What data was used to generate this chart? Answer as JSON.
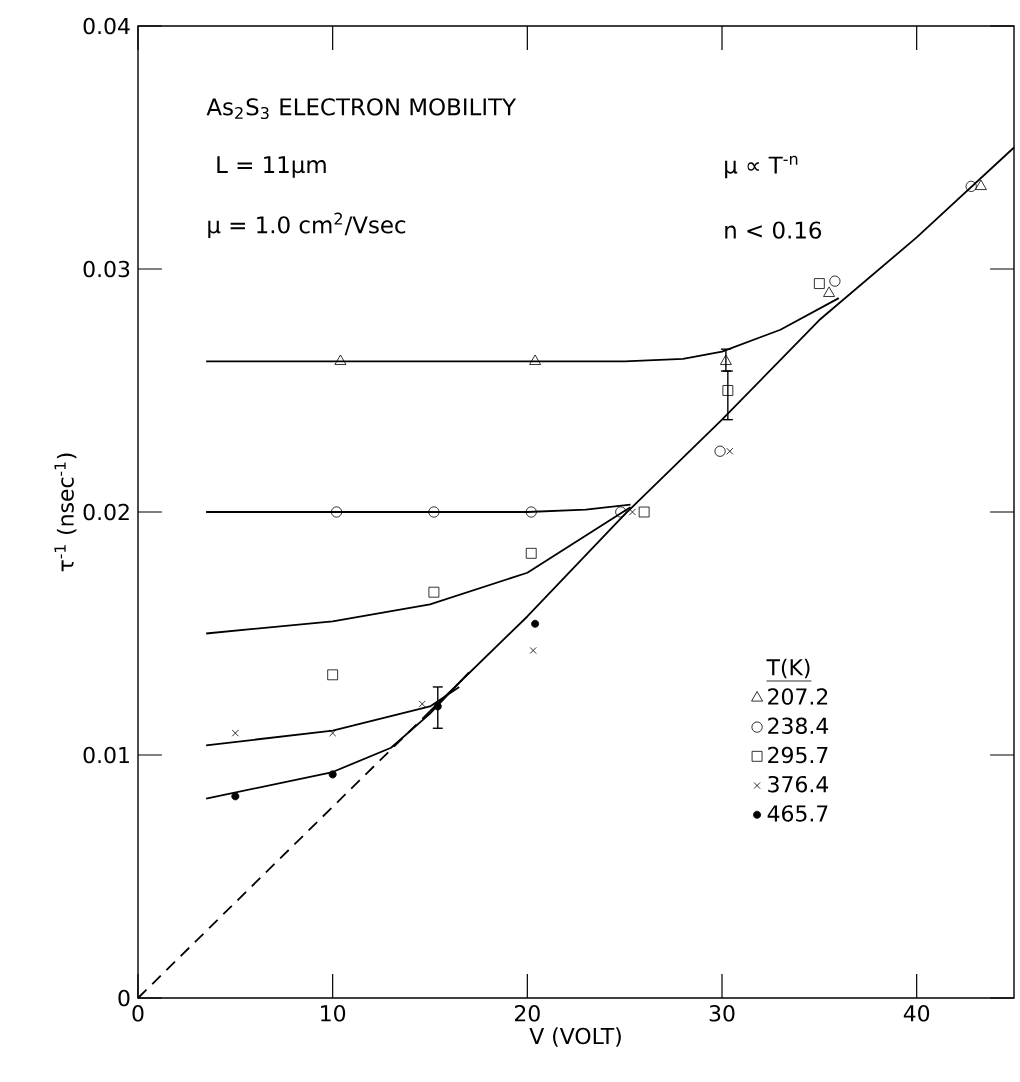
{
  "chart_data": {
    "type": "scatter",
    "xlabel": "V (VOLT)",
    "ylabel": "τ$^{-1}$ (nsec$^{-1}$)",
    "legend_title": "T(K)",
    "legend": "right",
    "grid": false,
    "xlim": [
      0,
      45
    ],
    "ylim": [
      0,
      0.04
    ],
    "xticks": [
      0,
      10,
      20,
      30,
      40
    ],
    "yticks": [
      0,
      0.01,
      0.02,
      0.03,
      0.04
    ],
    "annotations": [
      "As$_{2}$S$_{3}$ ELECTRON MOBILITY",
      "L = 11μm",
      "μ = 1.0 cm$^{2}$/Vsec",
      "μ ∝ T$^{-n}$",
      "n < 0.16"
    ],
    "series": [
      {
        "type": "line",
        "color": "#000000",
        "line_style": "solid",
        "x": [
          3.5,
          20,
          25,
          28,
          30,
          33,
          36
        ],
        "values": [
          0.0262,
          0.0262,
          0.0262,
          0.0263,
          0.0266,
          0.0275,
          0.0288
        ]
      },
      {
        "type": "line",
        "color": "#000000",
        "line_style": "solid",
        "x": [
          3.5,
          15,
          20,
          23,
          25.3
        ],
        "values": [
          0.02,
          0.02,
          0.02,
          0.0201,
          0.0203
        ]
      },
      {
        "type": "line",
        "color": "#000000",
        "line_style": "solid",
        "x": [
          3.5,
          10,
          15,
          20,
          25.3
        ],
        "values": [
          0.015,
          0.0155,
          0.0162,
          0.0175,
          0.0202
        ]
      },
      {
        "type": "line",
        "color": "#000000",
        "line_style": "solid",
        "x": [
          3.5,
          10,
          15,
          16.5
        ],
        "values": [
          0.0104,
          0.011,
          0.012,
          0.0128
        ]
      },
      {
        "type": "line",
        "color": "#000000",
        "line_style": "solid",
        "x": [
          3.5,
          10,
          13,
          15,
          17
        ],
        "values": [
          0.0082,
          0.0093,
          0.0103,
          0.0117,
          0.0134
        ]
      },
      {
        "type": "line",
        "color": "#000000",
        "line_style": "dashed",
        "x": [
          0,
          15
        ],
        "values": [
          0,
          0.0118
        ]
      },
      {
        "type": "line",
        "color": "#000000",
        "line_style": "solid",
        "x": [
          15,
          20,
          25,
          30,
          35,
          40,
          45
        ],
        "values": [
          0.0118,
          0.0157,
          0.0199,
          0.0238,
          0.0279,
          0.0313,
          0.035
        ]
      },
      {
        "name": "207.2",
        "marker": "triangle",
        "color": "#000000",
        "x": [
          10.4,
          20.4,
          30.2,
          35.5,
          43.3
        ],
        "values": [
          0.0262,
          0.0262,
          0.0262,
          0.029,
          0.0334
        ],
        "errors": [
          null,
          null,
          [
            0.0258,
            0.0267
          ],
          null,
          null
        ]
      },
      {
        "name": "238.4",
        "marker": "circle",
        "color": "#000000",
        "x": [
          10.2,
          15.2,
          20.2,
          24.8,
          29.9,
          35.8,
          42.8
        ],
        "values": [
          0.02,
          0.02,
          0.02,
          0.02,
          0.0225,
          0.0295,
          0.0334
        ]
      },
      {
        "name": "295.7",
        "marker": "square",
        "color": "#000000",
        "x": [
          10,
          15.2,
          20.2,
          26,
          30.3,
          35
        ],
        "values": [
          0.0133,
          0.0167,
          0.0183,
          0.02,
          0.025,
          0.0294
        ],
        "errors": [
          null,
          null,
          null,
          null,
          [
            0.0238,
            0.0258
          ],
          null
        ]
      },
      {
        "name": "376.4",
        "marker": "cross",
        "color": "#000000",
        "x": [
          5,
          10,
          14.6,
          20.3,
          25.4,
          30.4
        ],
        "values": [
          0.0109,
          0.0109,
          0.0121,
          0.0143,
          0.02,
          0.0225
        ]
      },
      {
        "name": "465.7",
        "marker": "dot",
        "color": "#000000",
        "x": [
          5,
          10,
          15.4,
          20.4
        ],
        "values": [
          0.0083,
          0.0092,
          0.012,
          0.0154
        ],
        "errors": [
          null,
          null,
          [
            0.0111,
            0.0128
          ],
          null
        ]
      }
    ]
  }
}
